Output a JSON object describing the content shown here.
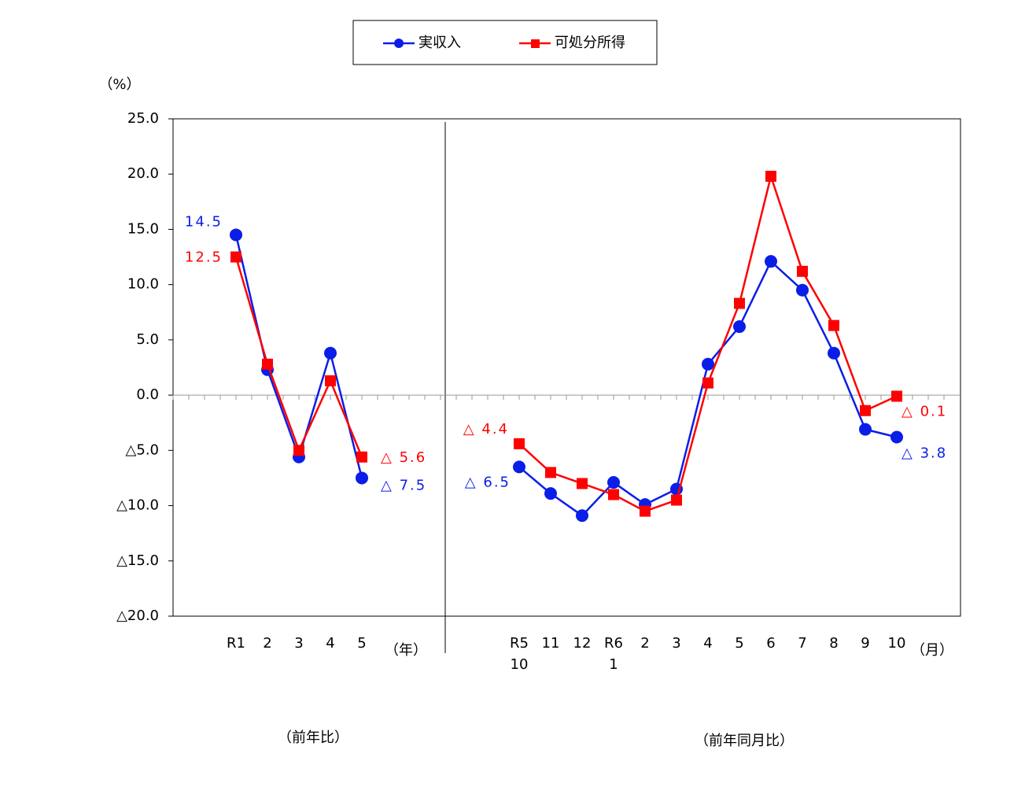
{
  "chart_data": {
    "type": "line",
    "y_unit": "（%）",
    "x_unit_left": "（年）",
    "x_unit_right": "（月）",
    "caption_left": "（前年比）",
    "caption_right": "（前年同月比）",
    "categories": [
      null,
      "R1",
      "2",
      "3",
      "4",
      "5",
      null,
      null,
      null,
      null,
      "R5\n10",
      "11",
      "12",
      "R6\n1",
      "2",
      "3",
      "4",
      "5",
      "6",
      "7",
      "8",
      "9",
      "10",
      null
    ],
    "series": [
      {
        "name": "実収入",
        "color": "#0a1ee8",
        "marker": "circle",
        "values": [
          null,
          14.5,
          2.3,
          -5.6,
          3.8,
          -7.5,
          null,
          null,
          null,
          null,
          -6.5,
          -8.9,
          -10.9,
          -7.9,
          -9.9,
          -8.5,
          2.8,
          6.2,
          12.1,
          9.5,
          3.8,
          -3.1,
          -3.8,
          null
        ],
        "value_labels": [
          null,
          "14.5",
          null,
          null,
          null,
          "△ 7.5",
          null,
          null,
          null,
          null,
          "△ 6.5",
          null,
          null,
          null,
          null,
          null,
          null,
          null,
          null,
          null,
          null,
          null,
          "△ 3.8",
          null
        ]
      },
      {
        "name": "可処分所得",
        "color": "#ff0000",
        "marker": "square",
        "values": [
          null,
          12.5,
          2.8,
          -5.0,
          1.3,
          -5.6,
          null,
          null,
          null,
          null,
          -4.4,
          -7.0,
          -8.0,
          -9.0,
          -10.5,
          -9.5,
          1.1,
          8.3,
          19.8,
          11.2,
          6.3,
          -1.4,
          -0.1,
          null
        ],
        "value_labels": [
          null,
          "12.5",
          null,
          null,
          null,
          "△ 5.6",
          null,
          null,
          null,
          null,
          "△ 4.4",
          null,
          null,
          null,
          null,
          null,
          null,
          null,
          null,
          null,
          null,
          null,
          "△ 0.1",
          null
        ]
      }
    ],
    "ylim": [
      -20,
      25
    ],
    "yticks": [
      {
        "value": 25,
        "label": "25.0"
      },
      {
        "value": 20,
        "label": "20.0"
      },
      {
        "value": 15,
        "label": "15.0"
      },
      {
        "value": 10,
        "label": "10.0"
      },
      {
        "value": 5,
        "label": "5.0"
      },
      {
        "value": 0,
        "label": "0.0"
      },
      {
        "value": -5,
        "label": "△5.0"
      },
      {
        "value": -10,
        "label": "△10.0"
      },
      {
        "value": -15,
        "label": "△15.0"
      },
      {
        "value": -20,
        "label": "△20.0"
      }
    ]
  }
}
